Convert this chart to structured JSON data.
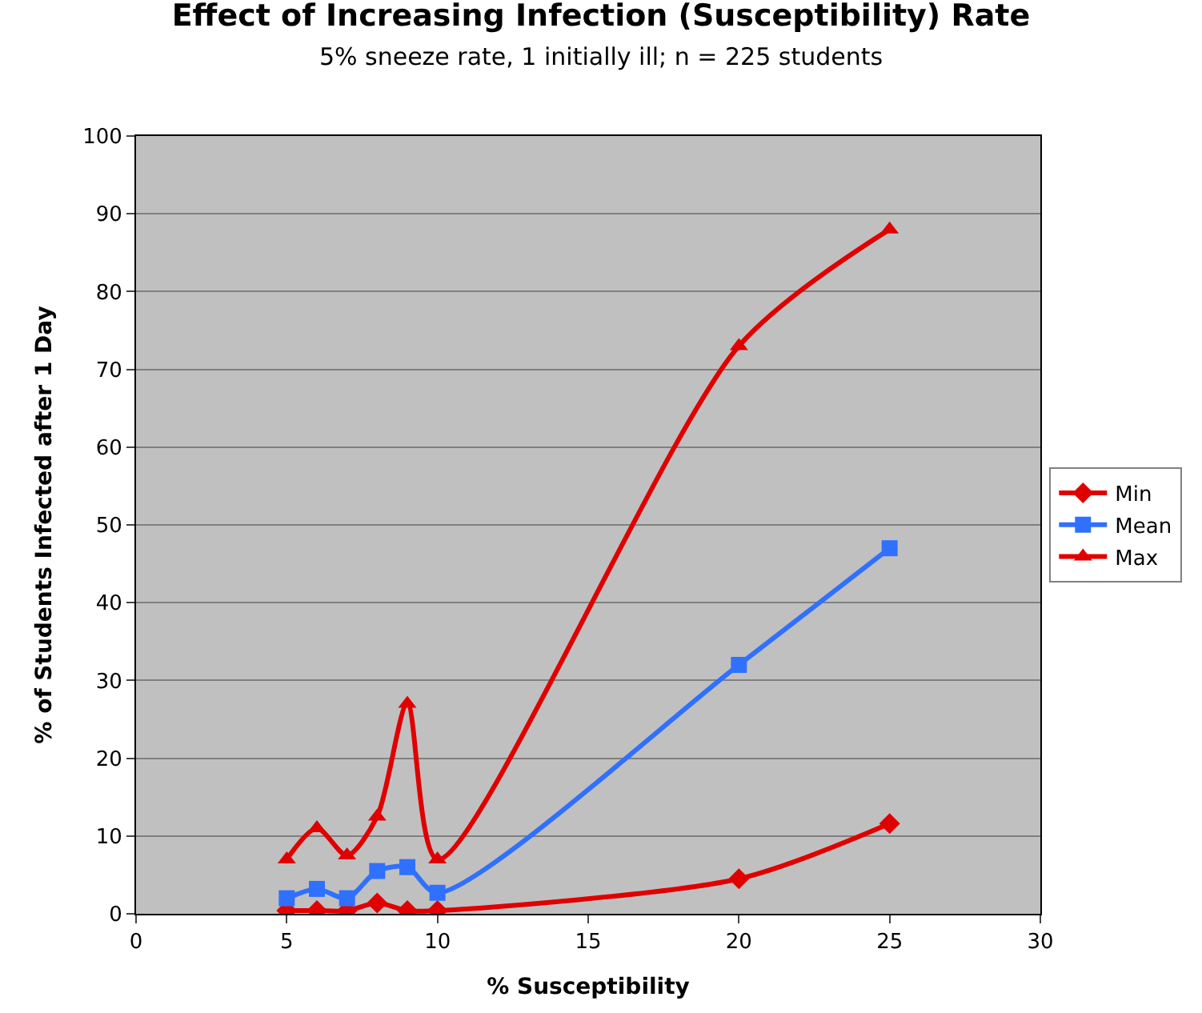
{
  "chart_data": {
    "type": "line",
    "title": "Effect of Increasing Infection (Susceptibility) Rate",
    "subtitle": "5% sneeze rate, 1 initially ill; n = 225 students",
    "xlabel": "% Susceptibility",
    "ylabel": "% of Students Infected after 1 Day",
    "x": [
      5,
      6,
      7,
      8,
      9,
      10,
      20,
      25
    ],
    "series": [
      {
        "name": "Min",
        "color": "#e00000",
        "marker": "diamond",
        "values": [
          0.4,
          0.4,
          0.4,
          1.4,
          0.4,
          0.4,
          4.5,
          11.6
        ]
      },
      {
        "name": "Mean",
        "color": "#3070ff",
        "marker": "square",
        "values": [
          2,
          3.2,
          2,
          5.5,
          6,
          2.7,
          32,
          47
        ]
      },
      {
        "name": "Max",
        "color": "#e00000",
        "marker": "triangle",
        "values": [
          7,
          11,
          7.5,
          12.5,
          27,
          7,
          73,
          88
        ]
      }
    ],
    "xlim": [
      0,
      30
    ],
    "xticks": [
      0,
      5,
      10,
      15,
      20,
      25,
      30
    ],
    "ylim": [
      0,
      100
    ],
    "yticks": [
      0,
      10,
      20,
      30,
      40,
      50,
      60,
      70,
      80,
      90,
      100
    ],
    "grid": "y",
    "legend": "right",
    "line_style": "solid"
  }
}
